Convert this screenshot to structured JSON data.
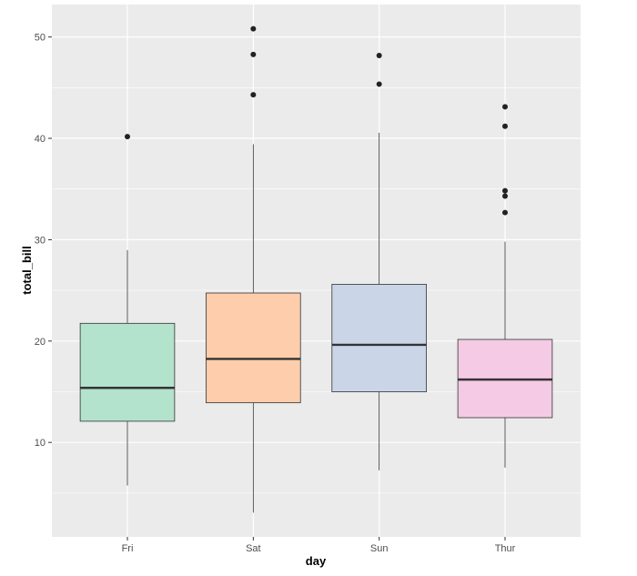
{
  "chart_data": {
    "type": "boxplot",
    "xlabel": "day",
    "ylabel": "total_bill",
    "categories": [
      "Fri",
      "Sat",
      "Sun",
      "Thur"
    ],
    "ylim": [
      0.68,
      53.2
    ],
    "yticks": [
      10,
      20,
      30,
      40,
      50
    ],
    "grid": true,
    "fill_colors": [
      "#B3E2CD",
      "#FDCDAC",
      "#CBD5E8",
      "#F4CAE4"
    ],
    "panel_background": "#EBEBEB",
    "boxes": [
      {
        "category": "Fri",
        "whisker_low": 5.75,
        "q1": 12.09,
        "median": 15.38,
        "q3": 21.75,
        "whisker_high": 28.97,
        "outliers": [
          40.17
        ]
      },
      {
        "category": "Sat",
        "whisker_low": 3.07,
        "q1": 13.91,
        "median": 18.24,
        "q3": 24.74,
        "whisker_high": 39.42,
        "outliers": [
          44.3,
          48.27,
          50.81
        ]
      },
      {
        "category": "Sun",
        "whisker_low": 7.25,
        "q1": 14.99,
        "median": 19.63,
        "q3": 25.6,
        "whisker_high": 40.55,
        "outliers": [
          45.35,
          48.17
        ]
      },
      {
        "category": "Thur",
        "whisker_low": 7.51,
        "q1": 12.44,
        "median": 16.2,
        "q3": 20.16,
        "whisker_high": 29.8,
        "outliers": [
          32.68,
          34.3,
          34.83,
          41.19,
          43.11
        ]
      }
    ]
  }
}
